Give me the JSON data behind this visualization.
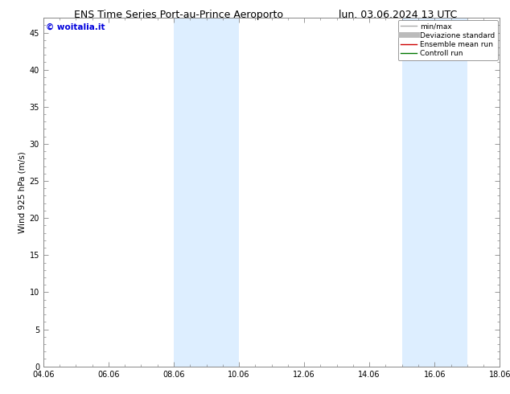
{
  "title_left": "ENS Time Series Port-au-Prince Aeroporto",
  "title_right": "lun. 03.06.2024 13 UTC",
  "ylabel": "Wind 925 hPa (m/s)",
  "watermark": "© woitalia.it",
  "watermark_color": "#0000dd",
  "ylim": [
    0,
    47
  ],
  "yticks": [
    0,
    5,
    10,
    15,
    20,
    25,
    30,
    35,
    40,
    45
  ],
  "xlim_start": 0,
  "xlim_end": 14,
  "xtick_labels": [
    "04.06",
    "06.06",
    "08.06",
    "10.06",
    "12.06",
    "14.06",
    "16.06",
    "18.06"
  ],
  "xtick_positions": [
    0,
    2,
    4,
    6,
    8,
    10,
    12,
    14
  ],
  "shaded_bands": [
    {
      "x_start": 4.0,
      "x_end": 5.0
    },
    {
      "x_start": 5.0,
      "x_end": 6.0
    },
    {
      "x_start": 11.0,
      "x_end": 12.0
    },
    {
      "x_start": 12.0,
      "x_end": 13.0
    }
  ],
  "shade_color": "#ddeeff",
  "background_color": "#ffffff",
  "spine_color": "#888888",
  "legend_entries": [
    {
      "label": "min/max",
      "color": "#aaaaaa",
      "lw": 1.0,
      "ls": "-"
    },
    {
      "label": "Deviazione standard",
      "color": "#bbbbbb",
      "lw": 5,
      "ls": "-"
    },
    {
      "label": "Ensemble mean run",
      "color": "#cc0000",
      "lw": 1.0,
      "ls": "-"
    },
    {
      "label": "Controll run",
      "color": "#007700",
      "lw": 1.0,
      "ls": "-"
    }
  ],
  "title_fontsize": 9,
  "tick_fontsize": 7,
  "ylabel_fontsize": 7.5,
  "watermark_fontsize": 7.5,
  "legend_fontsize": 6.5
}
